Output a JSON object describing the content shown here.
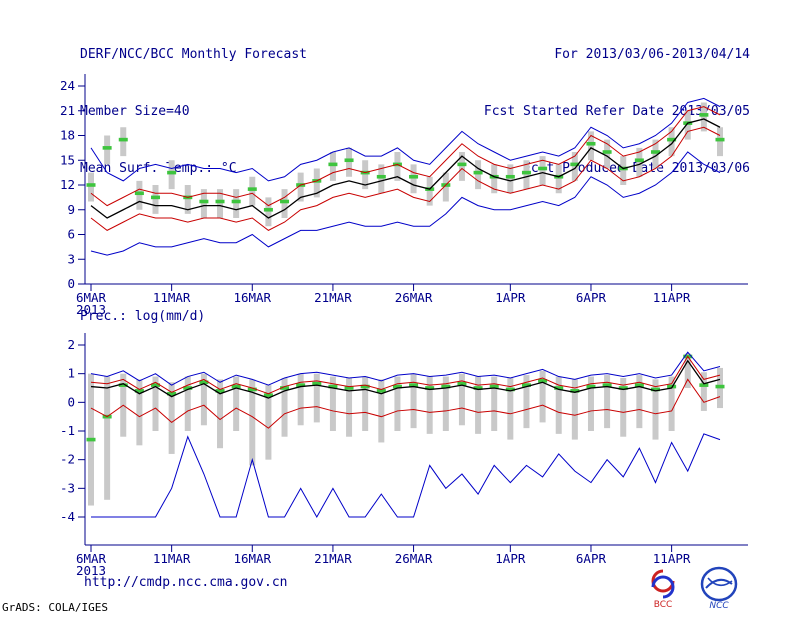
{
  "colors": {
    "text": "#00008b",
    "axis": "#00008b",
    "bars": "#c9c9c9",
    "marker_green": "#3ec43e",
    "line_red": "#c80000",
    "line_blue": "#0000c8",
    "line_black": "#000000"
  },
  "header": {
    "title": "DERF/NCC/BCC Monthly Forecast",
    "member_size": "Member Size=40",
    "for_range": "For 2013/03/06-2013/04/14",
    "refer_date": "Fcst Started Refer Date 2013/03/05",
    "produced_date": "Fcst Produced Date 2013/03/06"
  },
  "footer": {
    "url": "http://cmdp.ncc.cma.gov.cn",
    "credit": "GrADS: COLA/IGES",
    "logo_bcc": "BCC",
    "logo_ncc": "NCC"
  },
  "chart_data": [
    {
      "type": "line",
      "title": "Mean Surf. Temp.: °C",
      "n_days": 40,
      "x_tick_indices": [
        0,
        5,
        10,
        15,
        20,
        26,
        31,
        36
      ],
      "x_tick_labels": [
        "6MAR",
        "11MAR",
        "16MAR",
        "21MAR",
        "26MAR",
        "1APR",
        "6APR",
        "11APR"
      ],
      "x_sub_label": "2013",
      "ylim": [
        0,
        24
      ],
      "yticks": [
        0,
        3,
        6,
        9,
        12,
        15,
        18,
        21,
        24
      ],
      "bars": {
        "name": "ensemble-spread-bar",
        "color": "#c9c9c9",
        "lo": [
          10.0,
          14.5,
          15.5,
          9.0,
          8.5,
          11.5,
          8.5,
          8.0,
          8.0,
          8.0,
          9.5,
          7.0,
          8.0,
          10.0,
          10.5,
          12.5,
          13.0,
          11.5,
          11.0,
          12.5,
          11.0,
          9.5,
          10.0,
          12.5,
          11.5,
          11.0,
          11.0,
          11.5,
          12.0,
          11.0,
          12.5,
          15.0,
          14.0,
          12.0,
          13.0,
          14.0,
          15.5,
          17.5,
          18.5,
          15.5
        ],
        "hi": [
          13.5,
          18.0,
          19.0,
          12.5,
          12.0,
          15.0,
          12.0,
          11.5,
          11.5,
          11.5,
          13.0,
          10.5,
          11.5,
          13.5,
          14.0,
          16.0,
          16.5,
          15.0,
          14.5,
          16.0,
          14.5,
          13.0,
          13.5,
          16.0,
          15.0,
          14.5,
          14.5,
          15.0,
          15.5,
          14.5,
          16.0,
          18.5,
          17.5,
          15.5,
          16.5,
          17.5,
          19.0,
          21.0,
          22.0,
          19.0
        ]
      },
      "markers": {
        "name": "median-marker",
        "color": "#3ec43e",
        "values": [
          12.0,
          16.5,
          17.5,
          11.0,
          10.5,
          13.5,
          10.5,
          10.0,
          10.0,
          10.0,
          11.5,
          9.0,
          10.0,
          12.0,
          12.5,
          14.5,
          15.0,
          13.5,
          13.0,
          14.5,
          13.0,
          11.5,
          12.0,
          14.5,
          13.5,
          13.0,
          13.0,
          13.5,
          14.0,
          13.0,
          14.5,
          17.0,
          16.0,
          14.0,
          15.0,
          16.0,
          17.5,
          19.5,
          20.5,
          17.5
        ]
      },
      "series": [
        {
          "name": "ensemble-max",
          "color": "#0000c8",
          "width": 1,
          "values": [
            16.5,
            13.5,
            12.5,
            14.0,
            14.5,
            14.0,
            14.5,
            14.0,
            14.0,
            13.5,
            14.0,
            12.5,
            13.0,
            14.5,
            15.0,
            16.0,
            16.5,
            15.5,
            15.5,
            16.5,
            15.0,
            14.5,
            16.5,
            18.5,
            17.0,
            16.0,
            15.0,
            15.5,
            16.0,
            15.5,
            16.5,
            19.0,
            18.0,
            16.5,
            17.0,
            18.0,
            19.5,
            22.0,
            22.5,
            21.5
          ]
        },
        {
          "name": "plus-spread",
          "color": "#c80000",
          "width": 1,
          "values": [
            11.0,
            9.5,
            10.5,
            11.5,
            11.0,
            11.0,
            10.5,
            11.0,
            11.0,
            10.5,
            11.0,
            9.5,
            10.5,
            12.0,
            12.5,
            13.5,
            14.0,
            13.5,
            14.0,
            14.5,
            13.5,
            13.0,
            15.0,
            17.0,
            15.5,
            14.5,
            14.0,
            14.5,
            15.0,
            14.5,
            15.5,
            18.0,
            17.0,
            15.5,
            16.0,
            17.0,
            18.5,
            21.0,
            21.5,
            20.5
          ]
        },
        {
          "name": "ensemble-mean",
          "color": "#000000",
          "width": 1.3,
          "values": [
            9.5,
            8.0,
            9.0,
            10.0,
            9.5,
            9.5,
            9.0,
            9.5,
            9.5,
            9.0,
            9.5,
            8.0,
            9.0,
            10.5,
            11.0,
            12.0,
            12.5,
            12.0,
            12.5,
            13.0,
            12.0,
            11.5,
            13.5,
            15.5,
            14.0,
            13.0,
            12.5,
            13.0,
            13.5,
            13.0,
            14.0,
            16.5,
            15.5,
            14.0,
            14.5,
            15.5,
            17.0,
            19.5,
            20.0,
            19.0
          ]
        },
        {
          "name": "minus-spread",
          "color": "#c80000",
          "width": 1,
          "values": [
            8.0,
            6.5,
            7.5,
            8.5,
            8.0,
            8.0,
            7.5,
            8.0,
            8.0,
            7.5,
            8.0,
            6.5,
            7.5,
            9.0,
            9.5,
            10.5,
            11.0,
            10.5,
            11.0,
            11.5,
            10.5,
            10.0,
            12.0,
            14.0,
            12.5,
            11.5,
            11.0,
            11.5,
            12.0,
            11.5,
            12.5,
            15.0,
            14.0,
            12.5,
            13.0,
            14.0,
            15.5,
            18.5,
            19.0,
            18.0
          ]
        },
        {
          "name": "ensemble-min",
          "color": "#0000c8",
          "width": 1,
          "values": [
            4.0,
            3.5,
            4.0,
            5.0,
            4.5,
            4.5,
            5.0,
            5.5,
            5.0,
            5.0,
            6.0,
            4.5,
            5.5,
            6.5,
            6.5,
            7.0,
            7.5,
            7.0,
            7.0,
            7.5,
            7.0,
            7.0,
            8.5,
            10.5,
            9.5,
            9.0,
            9.0,
            9.5,
            10.0,
            9.5,
            10.5,
            13.0,
            12.0,
            10.5,
            11.0,
            12.0,
            13.5,
            16.0,
            14.5,
            13.5
          ]
        }
      ]
    },
    {
      "type": "line",
      "title": "Prec.: log(mm/d)",
      "n_days": 40,
      "x_tick_indices": [
        0,
        5,
        10,
        15,
        20,
        26,
        31,
        36
      ],
      "x_tick_labels": [
        "6MAR",
        "11MAR",
        "16MAR",
        "21MAR",
        "26MAR",
        "1APR",
        "6APR",
        "11APR"
      ],
      "x_sub_label": "2013",
      "ylim": [
        -4,
        2
      ],
      "yticks": [
        -4,
        -3,
        -2,
        -1,
        0,
        1,
        2
      ],
      "bars": {
        "name": "ensemble-spread-bar",
        "color": "#c9c9c9",
        "lo": [
          -3.6,
          -3.4,
          -1.2,
          -1.5,
          -1.0,
          -1.8,
          -1.0,
          -0.8,
          -1.6,
          -1.0,
          -2.2,
          -2.0,
          -1.2,
          -0.8,
          -0.7,
          -1.0,
          -1.2,
          -1.0,
          -1.4,
          -1.0,
          -0.9,
          -1.1,
          -1.0,
          -0.8,
          -1.1,
          -1.0,
          -1.3,
          -0.9,
          -0.7,
          -1.1,
          -1.3,
          -1.0,
          -0.9,
          -1.2,
          -0.9,
          -1.3,
          -1.0,
          0.5,
          -0.3,
          -0.2
        ],
        "hi": [
          1.0,
          0.9,
          1.0,
          0.8,
          0.9,
          0.7,
          0.9,
          1.0,
          0.8,
          0.9,
          0.8,
          0.6,
          0.85,
          1.0,
          1.0,
          0.9,
          0.85,
          0.9,
          0.8,
          0.9,
          1.0,
          0.9,
          0.9,
          1.0,
          0.9,
          0.9,
          0.85,
          0.95,
          1.1,
          0.9,
          0.8,
          0.9,
          0.95,
          0.85,
          0.95,
          0.8,
          0.9,
          1.7,
          1.05,
          1.2
        ]
      },
      "markers": {
        "name": "median-marker",
        "color": "#3ec43e",
        "values": [
          -1.3,
          -0.5,
          0.6,
          0.4,
          0.6,
          0.3,
          0.5,
          0.7,
          0.4,
          0.55,
          0.45,
          0.25,
          0.5,
          0.6,
          0.65,
          0.55,
          0.5,
          0.55,
          0.4,
          0.55,
          0.6,
          0.5,
          0.55,
          0.65,
          0.5,
          0.55,
          0.45,
          0.6,
          0.75,
          0.5,
          0.4,
          0.55,
          0.6,
          0.5,
          0.6,
          0.45,
          0.55,
          1.6,
          0.6,
          0.55
        ]
      },
      "series": [
        {
          "name": "ensemble-max",
          "color": "#0000c8",
          "width": 1,
          "values": [
            1.0,
            0.9,
            1.1,
            0.75,
            1.0,
            0.6,
            0.9,
            1.05,
            0.7,
            0.95,
            0.8,
            0.6,
            0.85,
            1.0,
            1.05,
            0.95,
            0.85,
            0.9,
            0.75,
            0.95,
            1.0,
            0.9,
            0.95,
            1.05,
            0.9,
            0.95,
            0.85,
            1.0,
            1.15,
            0.9,
            0.8,
            0.95,
            1.0,
            0.9,
            1.0,
            0.85,
            0.95,
            1.75,
            1.1,
            1.25
          ]
        },
        {
          "name": "plus-spread",
          "color": "#c80000",
          "width": 1,
          "values": [
            0.7,
            0.65,
            0.8,
            0.45,
            0.7,
            0.35,
            0.6,
            0.8,
            0.45,
            0.65,
            0.5,
            0.3,
            0.55,
            0.7,
            0.75,
            0.65,
            0.55,
            0.6,
            0.45,
            0.65,
            0.7,
            0.6,
            0.65,
            0.75,
            0.6,
            0.65,
            0.55,
            0.7,
            0.85,
            0.6,
            0.5,
            0.65,
            0.7,
            0.6,
            0.7,
            0.55,
            0.65,
            1.6,
            0.8,
            0.95
          ]
        },
        {
          "name": "ensemble-mean",
          "color": "#000000",
          "width": 1.3,
          "values": [
            0.55,
            0.5,
            0.65,
            0.3,
            0.55,
            0.2,
            0.45,
            0.65,
            0.3,
            0.5,
            0.35,
            0.15,
            0.4,
            0.55,
            0.6,
            0.5,
            0.4,
            0.45,
            0.3,
            0.5,
            0.55,
            0.45,
            0.5,
            0.6,
            0.45,
            0.5,
            0.4,
            0.55,
            0.7,
            0.45,
            0.35,
            0.5,
            0.55,
            0.45,
            0.55,
            0.4,
            0.5,
            1.45,
            0.65,
            0.8
          ]
        },
        {
          "name": "minus-spread",
          "color": "#c80000",
          "width": 1,
          "values": [
            -0.2,
            -0.5,
            -0.1,
            -0.5,
            -0.2,
            -0.7,
            -0.3,
            -0.1,
            -0.6,
            -0.2,
            -0.5,
            -0.9,
            -0.4,
            -0.2,
            -0.15,
            -0.3,
            -0.4,
            -0.35,
            -0.5,
            -0.3,
            -0.25,
            -0.35,
            -0.3,
            -0.2,
            -0.35,
            -0.3,
            -0.4,
            -0.25,
            -0.1,
            -0.35,
            -0.45,
            -0.3,
            -0.25,
            -0.35,
            -0.25,
            -0.4,
            -0.3,
            0.8,
            0.0,
            0.2
          ]
        },
        {
          "name": "ensemble-min",
          "color": "#0000c8",
          "width": 1,
          "values": [
            -4.0,
            -4.0,
            -4.0,
            -4.0,
            -4.0,
            -3.0,
            -1.2,
            -2.5,
            -4.0,
            -4.0,
            -2.0,
            -4.0,
            -4.0,
            -3.0,
            -4.0,
            -3.0,
            -4.0,
            -4.0,
            -3.2,
            -4.0,
            -4.0,
            -2.2,
            -3.0,
            -2.5,
            -3.2,
            -2.2,
            -2.8,
            -2.2,
            -2.6,
            -1.8,
            -2.4,
            -2.8,
            -2.0,
            -2.6,
            -1.6,
            -2.8,
            -1.4,
            -2.4,
            -1.1,
            -1.3
          ]
        }
      ]
    }
  ]
}
